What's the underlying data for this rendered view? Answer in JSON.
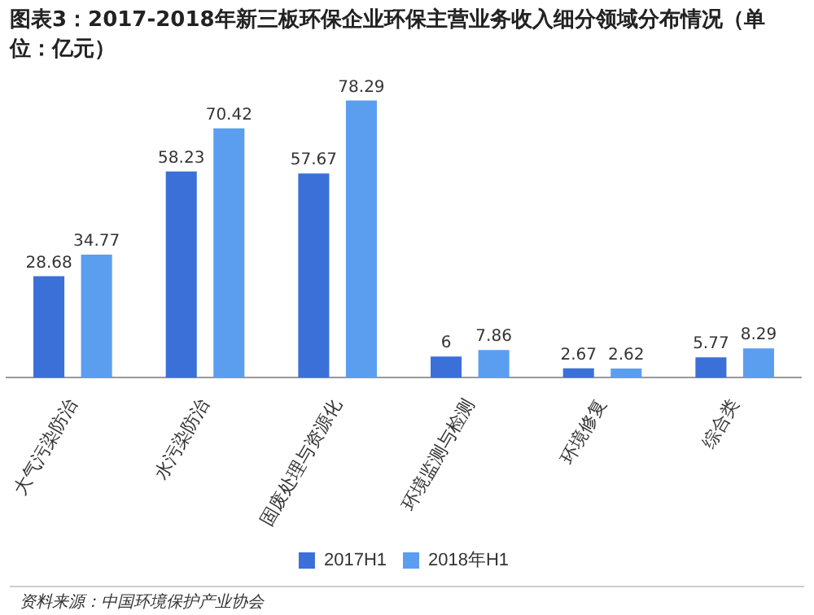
{
  "chart_data": {
    "type": "bar",
    "title": "图表3：2017-2018年新三板环保企业环保主营业务收入细分领域分布情况（单位：亿元）",
    "categories": [
      "大气污染防治",
      "水污染防治",
      "固废处理与资源化",
      "环境监测与检测",
      "环境修复",
      "综合类"
    ],
    "series": [
      {
        "name": "2017H1",
        "color": "#3b70d8",
        "values": [
          28.68,
          58.23,
          57.67,
          6,
          2.67,
          5.77
        ]
      },
      {
        "name": "2018年H1",
        "color": "#5b9ef0",
        "values": [
          34.77,
          70.42,
          78.29,
          7.86,
          2.62,
          8.29
        ]
      }
    ],
    "data_labels": true,
    "legend": "bottom",
    "grid": false,
    "tick_labels": "x",
    "annotations": [
      "资料来源：中国环境保护产业协会"
    ]
  }
}
